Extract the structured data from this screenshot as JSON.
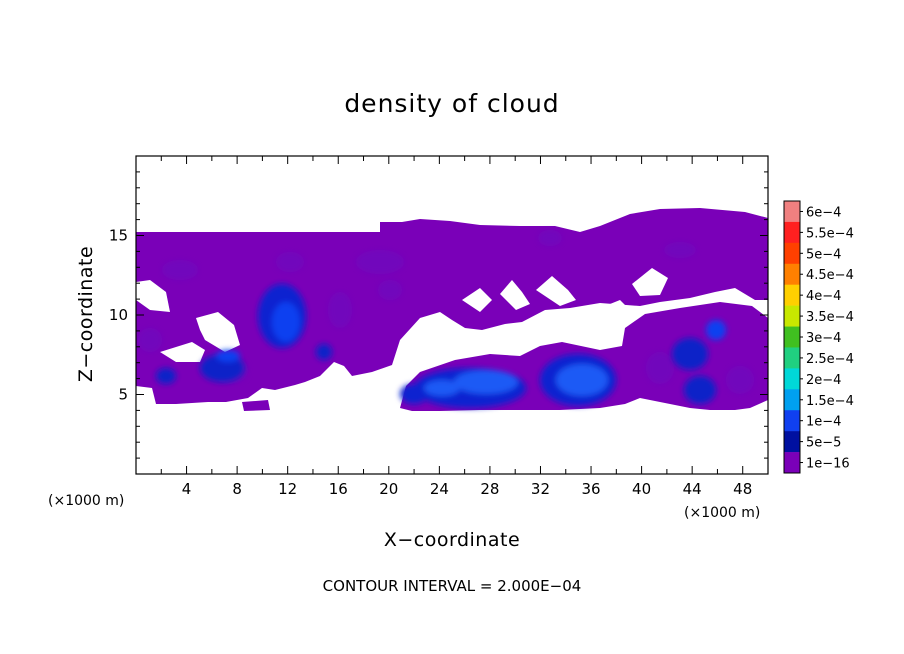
{
  "chart_data": {
    "type": "heatmap",
    "title": "density of cloud",
    "xlabel": "X−coordinate",
    "ylabel": "Z−coordinate",
    "x_unit": "(×1000 m)",
    "y_unit": "(×1000 m)",
    "footer": "CONTOUR INTERVAL = 2.000E−04",
    "xlim": [
      0,
      50
    ],
    "ylim": [
      0,
      20
    ],
    "x_ticks": [
      4,
      8,
      12,
      16,
      20,
      24,
      28,
      32,
      36,
      40,
      44,
      48
    ],
    "x_tick_labels": [
      "4",
      "8",
      "12",
      "16",
      "20",
      "24",
      "28",
      "32",
      "36",
      "40",
      "44",
      "48"
    ],
    "y_ticks": [
      5,
      10,
      15
    ],
    "y_tick_labels": [
      "5",
      "10",
      "15"
    ],
    "colorbar": {
      "labels": [
        "6e−4",
        "5.5e−4",
        "5e−4",
        "4.5e−4",
        "4e−4",
        "3.5e−4",
        "3e−4",
        "2.5e−4",
        "2e−4",
        "1.5e−4",
        "1e−4",
        "5e−5",
        "1e−16"
      ],
      "levels": [
        0.0006,
        0.00055,
        0.0005,
        0.00045,
        0.0004,
        0.00035,
        0.0003,
        0.00025,
        0.0002,
        0.00015,
        0.0001,
        5e-05,
        1e-16
      ],
      "colors": [
        "#f08080",
        "#ff2020",
        "#ff4000",
        "#ff8000",
        "#ffd000",
        "#c8e800",
        "#40c020",
        "#20d080",
        "#00d8d8",
        "#00a0f0",
        "#1040f0",
        "#0010a0",
        "#7a00b8"
      ]
    },
    "cloud_regions": [
      {
        "x": [
          0,
          50
        ],
        "z": [
          14,
          16.5
        ],
        "density": "1e−16 to 5e−5"
      },
      {
        "x": [
          0,
          20
        ],
        "z": [
          5,
          14
        ],
        "density": "1e−16 to 5e−5"
      },
      {
        "x": [
          21,
          39
        ],
        "z": [
          4,
          7.5
        ],
        "density": "5e−5 to 1.5e−4"
      },
      {
        "x": [
          39,
          50
        ],
        "z": [
          4,
          10.5
        ],
        "density": "1e−16 to 1e−4"
      }
    ],
    "blue_cores": [
      {
        "x": [
          9.5,
          13
        ],
        "z": [
          8,
          12
        ],
        "density": "1e−4"
      },
      {
        "x": [
          5,
          8
        ],
        "z": [
          6,
          8
        ],
        "density": "5e−5"
      },
      {
        "x": [
          22,
          30
        ],
        "z": [
          4.2,
          6.5
        ],
        "density": "1.5e−4"
      },
      {
        "x": [
          32,
          38
        ],
        "z": [
          4.2,
          7.2
        ],
        "density": "1.5e−4"
      },
      {
        "x": [
          43.5,
          47
        ],
        "z": [
          5,
          9.5
        ],
        "density": "5e−5"
      }
    ]
  }
}
